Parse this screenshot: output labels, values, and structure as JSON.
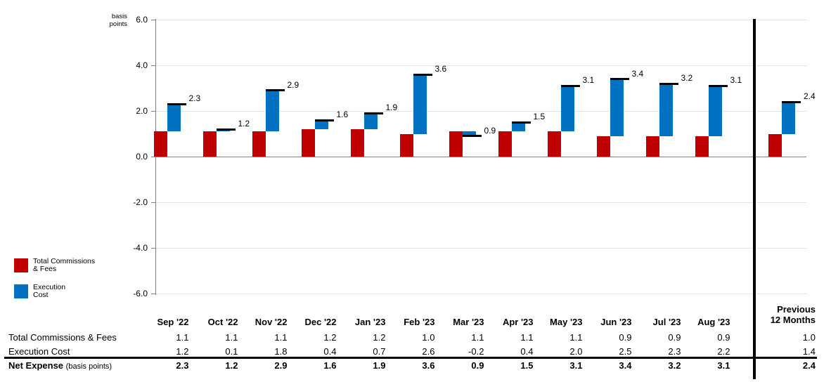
{
  "chart": {
    "unit_label": "basis points",
    "y_axis": {
      "tick_labels": [
        "6.0",
        "4.0",
        "2.0",
        "0.0",
        "-2.0",
        "-4.0",
        "-6.0"
      ],
      "tick_values": [
        6,
        4,
        2,
        0,
        -2,
        -4,
        -6
      ]
    },
    "legend": [
      {
        "line1": "Total Commissions",
        "line2": "& Fees",
        "color": "#C00000"
      },
      {
        "line1": "Execution",
        "line2": "Cost",
        "color": "#0072C1"
      }
    ],
    "colors": {
      "grid": "#DCE6F1",
      "axis": "#808080",
      "net_marker": "#000000",
      "separator": "#000000"
    }
  },
  "chart_data": {
    "type": "bar",
    "subtype": "stacked_waterfall_with_net_markers",
    "title": "",
    "ylabel": "basis points",
    "ylim": [
      -6,
      6
    ],
    "ytick_step": 2,
    "grid": true,
    "legend_position": "left-middle",
    "categories": [
      "Sep '22",
      "Oct '22",
      "Nov '22",
      "Dec '22",
      "Jan '23",
      "Feb '23",
      "Mar '23",
      "Apr '23",
      "May '23",
      "Jun '23",
      "Jul '23",
      "Aug '23",
      "Previous 12 Months"
    ],
    "series": [
      {
        "name": "Total Commissions & Fees",
        "color": "#C00000",
        "values": [
          1.1,
          1.1,
          1.1,
          1.2,
          1.2,
          1.0,
          1.1,
          1.1,
          1.1,
          0.9,
          0.9,
          0.9,
          1.0
        ]
      },
      {
        "name": "Execution Cost",
        "color": "#0072C1",
        "values": [
          1.2,
          0.1,
          1.8,
          0.4,
          0.7,
          2.6,
          -0.2,
          0.4,
          2.0,
          2.5,
          2.3,
          2.2,
          1.4
        ]
      }
    ],
    "net_totals": {
      "name": "Net Expense (basis points)",
      "values": [
        2.3,
        1.2,
        2.9,
        1.6,
        1.9,
        3.6,
        0.9,
        1.5,
        3.1,
        3.4,
        3.2,
        3.1,
        2.4
      ],
      "labels": [
        "2.3",
        "1.2",
        "2.9",
        "1.6",
        "1.9",
        "3.6",
        "0.9",
        "1.5",
        "3.1",
        "3.4",
        "3.2",
        "3.1",
        "2.4"
      ]
    }
  },
  "table": {
    "month_columns": [
      "Sep '22",
      "Oct '22",
      "Nov '22",
      "Dec '22",
      "Jan '23",
      "Feb '23",
      "Mar '23",
      "Apr '23",
      "May '23",
      "Jun '23",
      "Jul '23",
      "Aug '23"
    ],
    "previous_column": {
      "line1": "Previous",
      "line2": "12 Months"
    },
    "rows": [
      {
        "label": "Total Commissions & Fees",
        "label_suffix": "",
        "bold": false,
        "values": [
          "1.1",
          "1.1",
          "1.1",
          "1.2",
          "1.2",
          "1.0",
          "1.1",
          "1.1",
          "1.1",
          "0.9",
          "0.9",
          "0.9"
        ],
        "previous": "1.0"
      },
      {
        "label": "Execution Cost",
        "label_suffix": "",
        "bold": false,
        "values": [
          "1.2",
          "0.1",
          "1.8",
          "0.4",
          "0.7",
          "2.6",
          "-0.2",
          "0.4",
          "2.0",
          "2.5",
          "2.3",
          "2.2"
        ],
        "previous": "1.4"
      },
      {
        "label": "Net Expense",
        "label_suffix": "(basis points)",
        "bold": true,
        "values": [
          "2.3",
          "1.2",
          "2.9",
          "1.6",
          "1.9",
          "3.6",
          "0.9",
          "1.5",
          "3.1",
          "3.4",
          "3.2",
          "3.1"
        ],
        "previous": "2.4"
      }
    ]
  }
}
